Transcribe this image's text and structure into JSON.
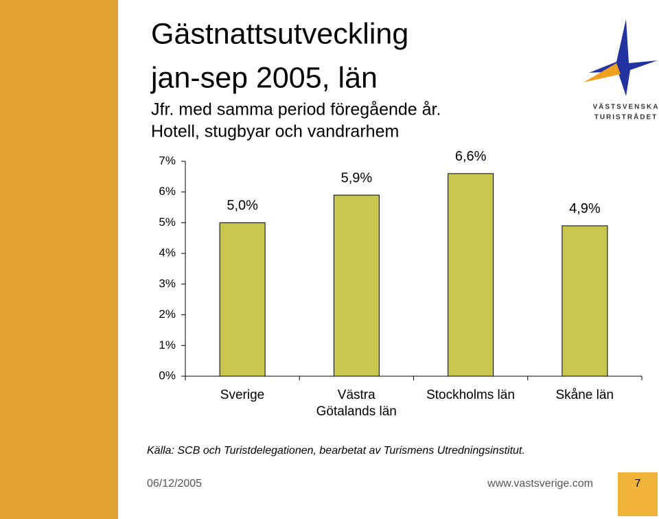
{
  "chart_data": {
    "type": "bar",
    "title": "Gästnattsutveckling",
    "subtitle": "jan-sep 2005, län",
    "notes": [
      "Jfr. med samma period föregående år.",
      "Hotell, stugbyar och vandrarhem"
    ],
    "categories": [
      "Sverige",
      "Västra\nGötalands län",
      "Stockholms län",
      "Skåne län"
    ],
    "values": [
      5.0,
      5.9,
      6.6,
      4.9
    ],
    "value_labels": [
      "5,0%",
      "5,9%",
      "6,6%",
      "4,9%"
    ],
    "color": "#c8c64c",
    "ylim": [
      0,
      7
    ],
    "yticks": [
      {
        "value": 0,
        "label": "0%"
      },
      {
        "value": 1,
        "label": "1%"
      },
      {
        "value": 2,
        "label": "2%"
      },
      {
        "value": 3,
        "label": "3%"
      },
      {
        "value": 4,
        "label": "4%"
      },
      {
        "value": 5,
        "label": "5%"
      },
      {
        "value": 6,
        "label": "6%"
      },
      {
        "value": 7,
        "label": "7%"
      }
    ],
    "source": "Källa: SCB och Turistdelegationen, bearbetat av Turismens Utredningsinstitut."
  },
  "footer": {
    "date": "06/12/2005",
    "url": "www.vastsverige.com",
    "page": "7"
  },
  "logo": {
    "line1": "VÄSTSVENSKA",
    "line2": "TURISTRÅDET"
  }
}
